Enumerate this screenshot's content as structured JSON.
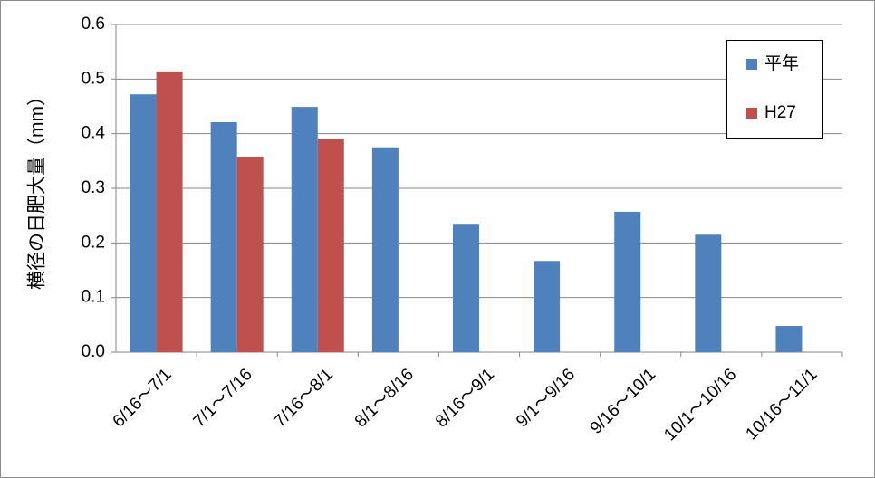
{
  "chart_data": {
    "type": "bar",
    "y_label": "横径の日肥大量（mm）",
    "categories": [
      "6/16～7/1",
      "7/1～7/16",
      "7/16～8/1",
      "8/1～8/16",
      "8/16～9/1",
      "9/1～9/16",
      "9/16～10/1",
      "10/1～10/16",
      "10/16～11/1"
    ],
    "series": [
      {
        "name": "平年",
        "color": "#4f81bd",
        "values": [
          0.472,
          0.421,
          0.449,
          0.375,
          0.235,
          0.167,
          0.257,
          0.215,
          0.048
        ]
      },
      {
        "name": "H27",
        "color": "#c0504d",
        "values": [
          0.514,
          0.358,
          0.391,
          null,
          null,
          null,
          null,
          null,
          null
        ]
      }
    ],
    "ylim": [
      0,
      0.6
    ],
    "yticks": [
      {
        "value": 0,
        "label": "0.0"
      },
      0.1,
      0.2,
      0.3,
      0.4,
      0.5,
      0.6
    ],
    "grid": true,
    "legend": "top-right"
  }
}
